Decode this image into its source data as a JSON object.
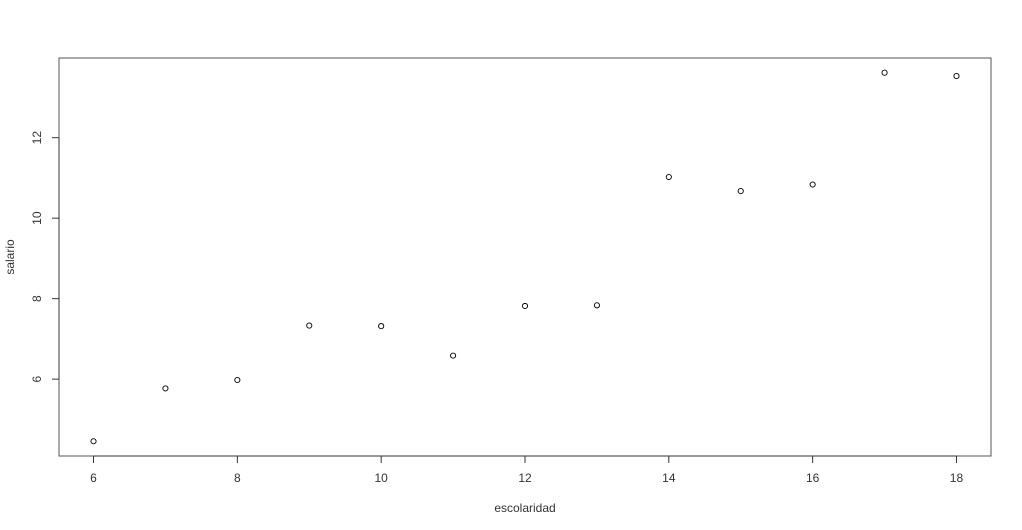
{
  "chart_data": {
    "type": "scatter",
    "title": "",
    "xlabel": "escolaridad",
    "ylabel": "salario",
    "x": [
      6,
      7,
      8,
      9,
      10,
      11,
      12,
      13,
      14,
      15,
      16,
      17,
      18
    ],
    "y": [
      4.4567,
      5.77,
      5.9787,
      7.3317,
      7.3182,
      6.5844,
      7.8182,
      7.8351,
      11.0223,
      10.6738,
      10.8361,
      13.615,
      13.531
    ],
    "xlim": [
      5.52,
      18.48
    ],
    "ylim": [
      4.09,
      13.98
    ],
    "xticks": [
      "6",
      "8",
      "10",
      "12",
      "14",
      "16",
      "18"
    ],
    "yticks": [
      "6",
      "8",
      "10",
      "12"
    ],
    "grid": false,
    "marker": "open-circle",
    "colors": {
      "points": "#000000",
      "axes": "#333333"
    }
  }
}
